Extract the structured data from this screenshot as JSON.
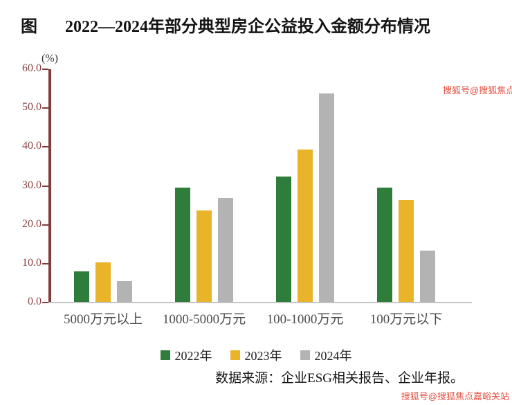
{
  "title": {
    "prefix": "图",
    "text": "2022—2024年部分典型房企公益投入金额分布情况"
  },
  "source": "数据来源：企业ESG相关报告、企业年报。",
  "watermark": {
    "top": "搜狐号@搜狐焦点嘉峪关站",
    "bottom": "搜狐号@搜狐焦点嘉峪关站"
  },
  "colors": {
    "axis": "#823c3c",
    "tick_label": "#8a4343",
    "baseline": "#c4c4c4",
    "watermark_red": "#e03a2a",
    "series_2022": "#2e7d3b",
    "series_2023": "#e9b32a",
    "series_2024": "#b3b3b3"
  },
  "chart_data": {
    "type": "bar",
    "title": "2022—2024年部分典型房企公益投入金额分布情况",
    "unit_label": "(%)",
    "categories": [
      "5000万元以上",
      "1000-5000万元",
      "100-1000万元",
      "100万元以下"
    ],
    "series": [
      {
        "name": "2022年",
        "color": "#2e7d3b",
        "values": [
          7.8,
          29.5,
          32.3,
          29.5
        ]
      },
      {
        "name": "2023年",
        "color": "#e9b32a",
        "values": [
          10.2,
          23.5,
          39.3,
          26.2
        ]
      },
      {
        "name": "2024年",
        "color": "#b3b3b3",
        "values": [
          5.3,
          26.8,
          53.8,
          13.3
        ]
      }
    ],
    "ylim": [
      0,
      60
    ],
    "yticks": [
      "60.0",
      "50.0",
      "40.0",
      "30.0",
      "20.0",
      "10.0",
      "0.0"
    ],
    "xlabel": "",
    "ylabel": "(%)",
    "grid": false,
    "legend_position": "bottom"
  }
}
